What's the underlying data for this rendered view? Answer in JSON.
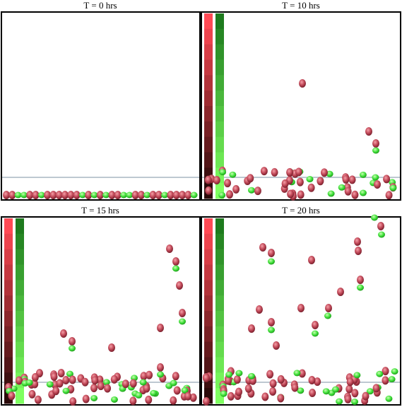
{
  "panels": [
    {
      "title": "T = 0 hrs"
    },
    {
      "title": "T = 10 hrs"
    },
    {
      "title": "T = 15 hrs"
    },
    {
      "title": "T = 20 hrs"
    }
  ],
  "colors": {
    "frame": "#000000",
    "line": "#a9b6c2",
    "cell_red": "#c24a5a",
    "cell_red_dark": "#7a1f2c",
    "cell_green": "#3fe03a",
    "red_bar_top": "#ff4a55",
    "red_bar_bottom": "#2b0a0a",
    "green_bar_top": "#1e7b1e",
    "green_bar_bottom": "#7fff60"
  }
}
